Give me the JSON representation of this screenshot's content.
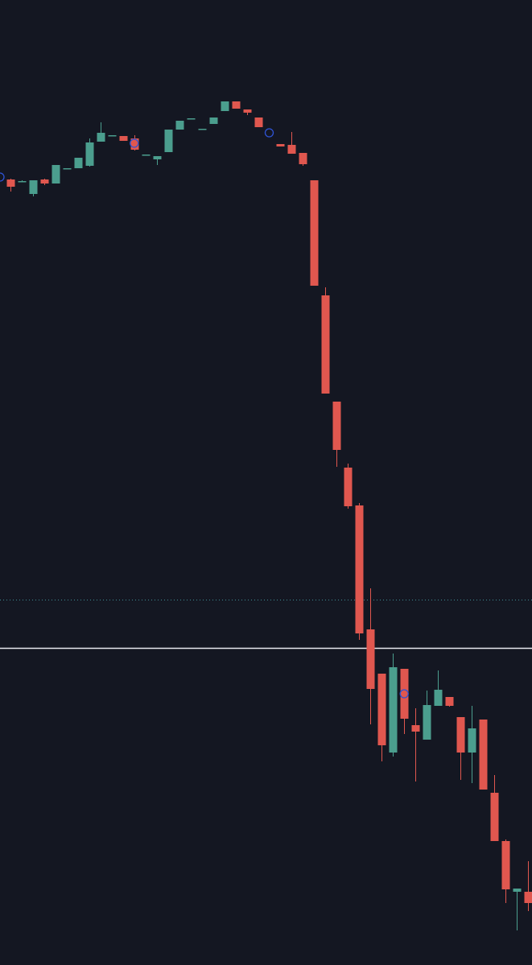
{
  "chart_data": {
    "type": "candlestick",
    "x": [
      1,
      2,
      3,
      4,
      5,
      6,
      7,
      8,
      9,
      10,
      11,
      12,
      13,
      14,
      15,
      16,
      17,
      18,
      19,
      20,
      21,
      22,
      23,
      25,
      26,
      27,
      28,
      29,
      30,
      31,
      32,
      33,
      34,
      35,
      36,
      37,
      38,
      39,
      40,
      41,
      42,
      43,
      44,
      45,
      46,
      47
    ],
    "open": [
      976,
      974,
      958,
      976,
      971,
      990,
      990,
      993,
      1023,
      1031,
      1030,
      1027,
      1007,
      1001,
      1010,
      1038,
      1052,
      1039,
      1045,
      1061,
      1073,
      1063,
      1053,
      1020,
      1019,
      1009,
      975,
      832,
      700,
      618,
      571,
      417,
      362,
      264,
      368,
      298,
      280,
      322,
      333,
      308,
      264,
      305,
      214,
      154,
      91,
      91
    ],
    "high": [
      977,
      975,
      975,
      977,
      994,
      990,
      1003,
      1027,
      1047,
      1031,
      1030,
      1031,
      1007,
      1005,
      1038,
      1049,
      1052,
      1039,
      1053,
      1073,
      1073,
      1063,
      1053,
      1020,
      1035,
      1009,
      975,
      842,
      700,
      623,
      574,
      468,
      362,
      387,
      368,
      319,
      341,
      366,
      333,
      308,
      322,
      305,
      236,
      156,
      95,
      129
    ],
    "low": [
      961,
      973,
      955,
      969,
      971,
      990,
      990,
      992,
      1023,
      1031,
      1024,
      1012,
      1007,
      994,
      1010,
      1038,
      1052,
      1039,
      1045,
      1061,
      1064,
      1056,
      1041,
      1017,
      1008,
      993,
      844,
      710,
      619,
      567,
      404,
      299,
      253,
      259,
      287,
      228,
      280,
      322,
      321,
      230,
      226,
      218,
      154,
      77,
      43,
      67
    ],
    "close": [
      967,
      974,
      975,
      971,
      994,
      990,
      1003,
      1022,
      1034,
      1031,
      1024,
      1013,
      1007,
      1005,
      1038,
      1049,
      1052,
      1039,
      1053,
      1073,
      1064,
      1059,
      1041,
      1017,
      1008,
      995,
      844,
      710,
      640,
      570,
      412,
      343,
      273,
      370,
      306,
      290,
      323,
      342,
      322,
      264,
      294,
      218,
      154,
      94,
      95,
      77
    ],
    "up_color": "#4b9e8e",
    "down_color": "#e0574f",
    "xlim": [
      0.07,
      47.36
    ],
    "ylim": [
      0,
      1199
    ],
    "lines": [
      {
        "value": 454,
        "style": "dotted",
        "color": "#3f8f96"
      },
      {
        "value": 394,
        "style": "solid",
        "color": "#e8eaf0"
      }
    ],
    "markers": {
      "x": [
        0.07,
        12,
        24,
        36
      ],
      "values": [
        979,
        1021,
        1034,
        337
      ],
      "color": "#2f54d6"
    }
  }
}
